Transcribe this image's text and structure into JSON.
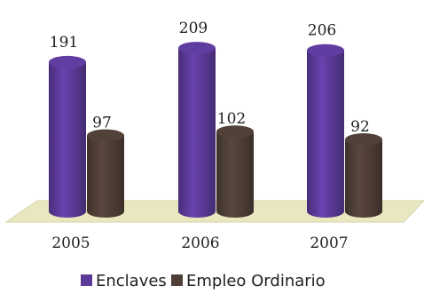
{
  "chart_data": {
    "type": "bar",
    "categories": [
      "2005",
      "2006",
      "2007"
    ],
    "series": [
      {
        "name": "Enclaves",
        "values": [
          191,
          209,
          206
        ],
        "color": "#5b3a98"
      },
      {
        "name": "Empleo Ordinario",
        "values": [
          97,
          102,
          92
        ],
        "color": "#4e3e36"
      }
    ],
    "floor_color": "#e9e7bf",
    "style": "3d-cylinder",
    "legend_position": "bottom",
    "grid": false
  }
}
